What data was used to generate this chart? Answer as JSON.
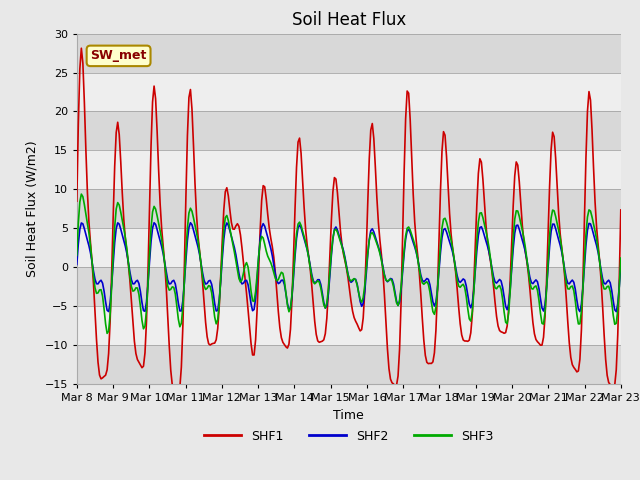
{
  "title": "Soil Heat Flux",
  "xlabel": "Time",
  "ylabel": "Soil Heat Flux (W/m2)",
  "ylim": [
    -15,
    30
  ],
  "yticks": [
    -15,
    -10,
    -5,
    0,
    5,
    10,
    15,
    20,
    25,
    30
  ],
  "fig_bg_color": "#e8e8e8",
  "plot_bg_color": "#e8e8e8",
  "band_colors_bottom_up": [
    "#e0e0e0",
    "#f5f5f5",
    "#e0e0e0",
    "#f5f5f5",
    "#e0e0e0",
    "#f5f5f5",
    "#e0e0e0",
    "#f5f5f5",
    "#e0e0e0"
  ],
  "line_colors": {
    "SHF1": "#cc0000",
    "SHF2": "#0000cc",
    "SHF3": "#00aa00"
  },
  "line_widths": {
    "SHF1": 1.2,
    "SHF2": 1.2,
    "SHF3": 1.2
  },
  "legend_label": "SW_met",
  "legend_bg": "#ffffcc",
  "legend_border": "#aa8800",
  "start_day": 8,
  "end_day": 23,
  "title_fontsize": 12,
  "axis_label_fontsize": 9,
  "tick_fontsize": 8
}
